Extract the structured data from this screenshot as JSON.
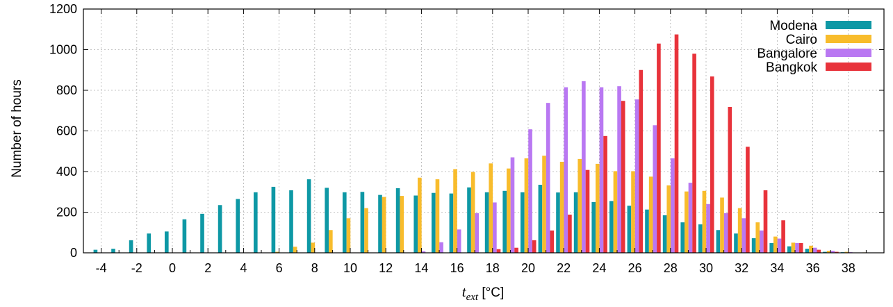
{
  "chart_data": {
    "type": "bar",
    "xlabel_main": "t",
    "xlabel_sub": "ext",
    "xlabel_unit": " [°C]",
    "ylabel": "Number of hours",
    "ylim": [
      0,
      1200
    ],
    "xlim": [
      -5,
      40
    ],
    "x_ticks": [
      "-4",
      "-2",
      "0",
      "2",
      "4",
      "6",
      "8",
      "10",
      "12",
      "14",
      "16",
      "18",
      "20",
      "22",
      "24",
      "26",
      "28",
      "30",
      "32",
      "34",
      "36",
      "38"
    ],
    "y_ticks": [
      "0",
      "200",
      "400",
      "600",
      "800",
      "1000",
      "1200"
    ],
    "grid": true,
    "legend_position": "top-right",
    "categories": [
      -4,
      -3,
      -2,
      -1,
      0,
      1,
      2,
      3,
      4,
      5,
      6,
      7,
      8,
      9,
      10,
      11,
      12,
      13,
      14,
      15,
      16,
      17,
      18,
      19,
      20,
      21,
      22,
      23,
      24,
      25,
      26,
      27,
      28,
      29,
      30,
      31,
      32,
      33,
      34,
      35,
      36,
      37,
      38,
      39
    ],
    "series": [
      {
        "name": "Modena",
        "color": "#0e98a5",
        "values": [
          15,
          20,
          62,
          95,
          105,
          165,
          192,
          235,
          265,
          298,
          325,
          308,
          362,
          320,
          298,
          300,
          285,
          318,
          282,
          295,
          292,
          322,
          298,
          305,
          298,
          335,
          297,
          298,
          250,
          255,
          232,
          213,
          185,
          150,
          140,
          112,
          95,
          72,
          48,
          32,
          20,
          5,
          3,
          1
        ]
      },
      {
        "name": "Cairo",
        "color": "#f8bc2c",
        "values": [
          0,
          0,
          0,
          0,
          0,
          0,
          0,
          0,
          0,
          0,
          5,
          30,
          50,
          112,
          170,
          220,
          275,
          280,
          370,
          362,
          412,
          398,
          440,
          415,
          465,
          478,
          448,
          462,
          438,
          402,
          402,
          375,
          332,
          302,
          305,
          272,
          220,
          150,
          80,
          50,
          35,
          10,
          5,
          2
        ]
      },
      {
        "name": "Bangalore",
        "color": "#b978f2",
        "values": [
          0,
          0,
          0,
          0,
          0,
          0,
          0,
          0,
          0,
          0,
          0,
          0,
          0,
          0,
          0,
          0,
          0,
          0,
          8,
          52,
          115,
          195,
          248,
          470,
          608,
          738,
          815,
          845,
          815,
          820,
          755,
          628,
          465,
          345,
          240,
          195,
          170,
          110,
          70,
          48,
          25,
          10,
          3,
          0
        ]
      },
      {
        "name": "Bangkok",
        "color": "#e8333b",
        "values": [
          0,
          0,
          0,
          0,
          0,
          0,
          0,
          0,
          0,
          0,
          0,
          0,
          0,
          0,
          0,
          0,
          0,
          0,
          0,
          0,
          0,
          0,
          18,
          25,
          62,
          110,
          188,
          408,
          575,
          748,
          900,
          1030,
          1075,
          980,
          868,
          718,
          522,
          308,
          160,
          48,
          15,
          5,
          0,
          0
        ]
      }
    ]
  }
}
